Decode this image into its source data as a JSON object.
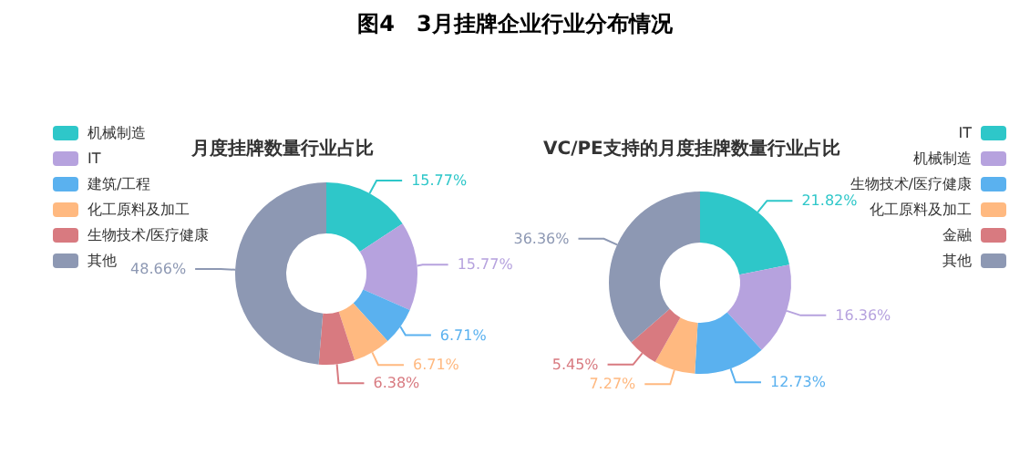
{
  "chart_data": [
    {
      "type": "other",
      "title": "图4　3月挂牌企业行业分布情况"
    },
    {
      "type": "donut",
      "title": "月度挂牌数量行业占比",
      "categories": [
        "机械制造",
        "IT",
        "建筑/工程",
        "化工原料及加工",
        "生物技术/医疗健康",
        "其他"
      ],
      "values": [
        15.77,
        15.77,
        6.71,
        6.71,
        6.38,
        48.66
      ],
      "value_labels": [
        "15.77%",
        "15.77%",
        "6.71%",
        "6.71%",
        "6.38%",
        "48.66%"
      ],
      "colors": [
        "#2ec7c9",
        "#b6a2de",
        "#5ab1ef",
        "#ffb980",
        "#d87a80",
        "#8d98b3"
      ],
      "legend": "top left"
    },
    {
      "type": "donut",
      "title": "VC/PE支持的月度挂牌数量行业占比",
      "categories": [
        "IT",
        "机械制造",
        "生物技术/医疗健康",
        "化工原料及加工",
        "金融",
        "其他"
      ],
      "values": [
        21.82,
        16.36,
        12.73,
        7.27,
        5.45,
        36.36
      ],
      "value_labels": [
        "21.82%",
        "16.36%",
        "12.73%",
        "7.27%",
        "5.45%",
        "36.36%"
      ],
      "colors": [
        "#2ec7c9",
        "#b6a2de",
        "#5ab1ef",
        "#ffb980",
        "#d87a80",
        "#8d98b3"
      ],
      "legend": "top right"
    }
  ]
}
